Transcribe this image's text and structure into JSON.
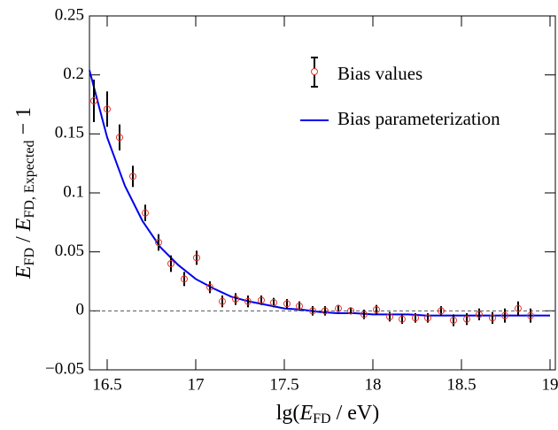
{
  "chart_data": {
    "type": "scatter",
    "x_label_parts": [
      "lg(",
      "E",
      "FD",
      " / eV)"
    ],
    "y_label_parts": [
      "E",
      "FD",
      " / ",
      "E",
      "FD, Expected",
      " − 1"
    ],
    "xlim": [
      16.4,
      19.03
    ],
    "ylim": [
      -0.05,
      0.25
    ],
    "xticks": [
      16.5,
      17,
      17.5,
      18,
      18.5,
      19
    ],
    "yticks": [
      {
        "value": -0.05,
        "label": "−0.05"
      },
      0,
      0.05,
      0.1,
      0.15,
      0.2,
      0.25
    ],
    "reference_line": 0,
    "legend": "upper right",
    "series": [
      {
        "name": "Bias values",
        "color": "#e8352b",
        "error_color": "#000000",
        "x": [
          16.425,
          16.5,
          16.57,
          16.645,
          16.715,
          16.79,
          16.86,
          16.935,
          17.005,
          17.08,
          17.15,
          17.225,
          17.295,
          17.37,
          17.44,
          17.515,
          17.585,
          17.66,
          17.73,
          17.805,
          17.875,
          17.95,
          18.02,
          18.095,
          18.165,
          18.24,
          18.31,
          18.385,
          18.455,
          18.53,
          18.6,
          18.675,
          18.745,
          18.82,
          18.89
        ],
        "values": [
          0.178,
          0.171,
          0.147,
          0.114,
          0.083,
          0.058,
          0.04,
          0.027,
          0.045,
          0.02,
          0.008,
          0.01,
          0.008,
          0.009,
          0.007,
          0.006,
          0.004,
          0.0,
          0.0,
          0.002,
          0.0,
          -0.003,
          0.001,
          -0.005,
          -0.007,
          -0.006,
          -0.006,
          0.0,
          -0.008,
          -0.007,
          -0.003,
          -0.006,
          -0.004,
          0.002,
          -0.004
        ],
        "errors": [
          0.018,
          0.015,
          0.011,
          0.009,
          0.007,
          0.007,
          0.007,
          0.006,
          0.006,
          0.005,
          0.005,
          0.005,
          0.005,
          0.004,
          0.004,
          0.004,
          0.004,
          0.004,
          0.004,
          0.003,
          0.003,
          0.004,
          0.004,
          0.004,
          0.004,
          0.004,
          0.004,
          0.004,
          0.005,
          0.005,
          0.005,
          0.005,
          0.006,
          0.006,
          0.006
        ]
      },
      {
        "name": "Bias parameterization",
        "type": "line",
        "color": "#0000ee",
        "x": [
          16.4,
          16.5,
          16.6,
          16.7,
          16.8,
          16.9,
          17.0,
          17.1,
          17.2,
          17.3,
          17.4,
          17.5,
          17.6,
          17.7,
          17.8,
          17.9,
          18.0,
          18.1,
          18.2,
          18.3,
          18.4,
          18.5,
          18.6,
          18.7,
          18.8,
          18.9,
          19.0
        ],
        "values": [
          0.204,
          0.147,
          0.106,
          0.076,
          0.054,
          0.039,
          0.027,
          0.019,
          0.012,
          0.008,
          0.005,
          0.002,
          0.001,
          -0.001,
          -0.002,
          -0.002,
          -0.003,
          -0.003,
          -0.003,
          -0.004,
          -0.004,
          -0.004,
          -0.004,
          -0.004,
          -0.004,
          -0.004,
          -0.004
        ]
      }
    ]
  }
}
